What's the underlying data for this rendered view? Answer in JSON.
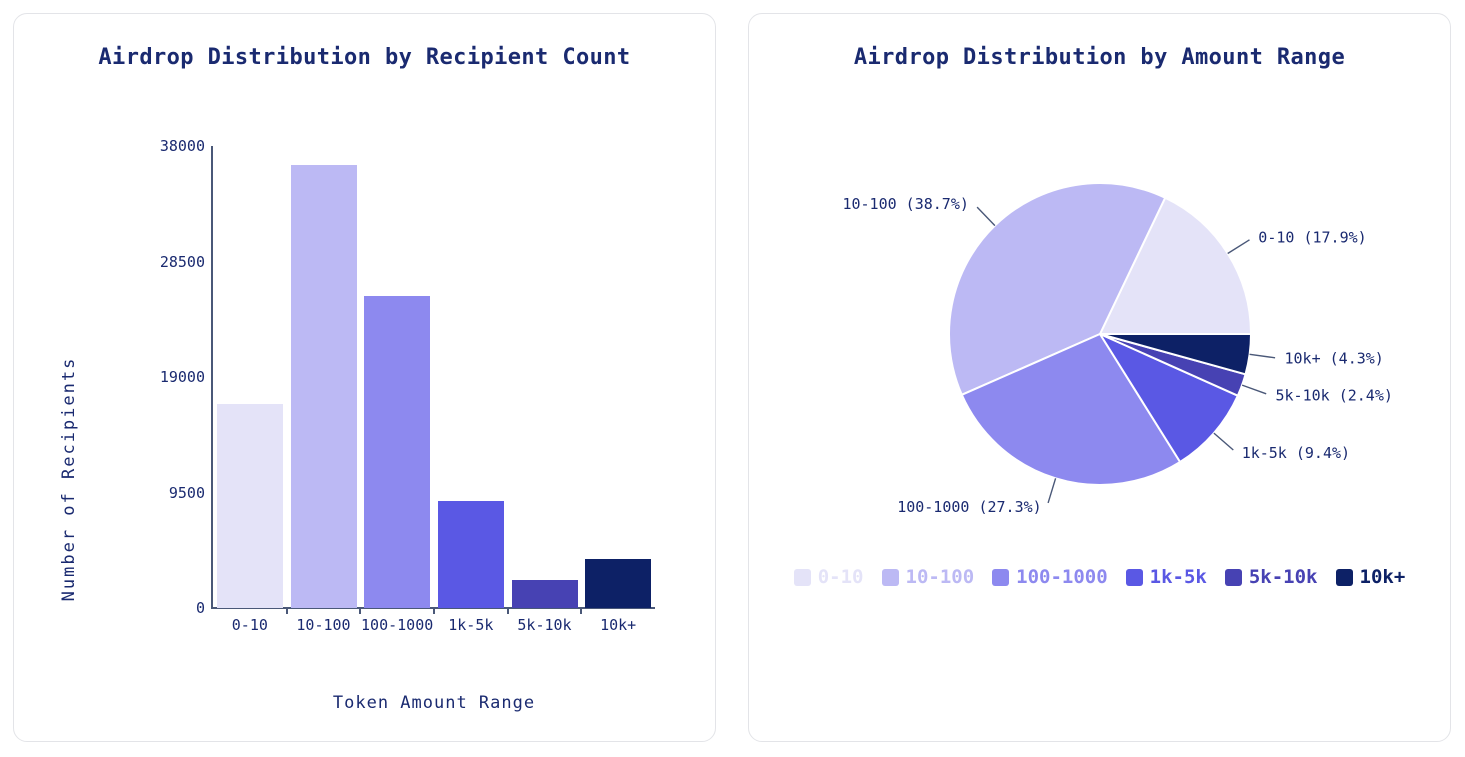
{
  "theme": {
    "background": "#ffffff",
    "text_color": "#1a2a70",
    "axis_color": "#4a5878",
    "card_border_color": "#e3e4e8"
  },
  "chart_data": [
    {
      "type": "bar",
      "title": "Airdrop Distribution by Recipient Count",
      "xlabel": "Token Amount Range",
      "ylabel": "Number of Recipients",
      "categories": [
        "0-10",
        "10-100",
        "100-1000",
        "1k-5k",
        "5k-10k",
        "10k+"
      ],
      "values": [
        16800,
        36400,
        25700,
        8800,
        2300,
        4000
      ],
      "yticks": [
        0,
        9500,
        19000,
        28500,
        38000
      ],
      "ylim": [
        0,
        38000
      ],
      "grid": false,
      "legend": "none",
      "colors": [
        "#e4e3f8",
        "#bcb9f4",
        "#8d89ef",
        "#5a58e4",
        "#4742b3",
        "#0d2166"
      ]
    },
    {
      "type": "pie",
      "title": "Airdrop Distribution by Amount Range",
      "labels": [
        "0-10",
        "10-100",
        "100-1000",
        "1k-5k",
        "5k-10k",
        "10k+"
      ],
      "percentages": [
        17.9,
        38.7,
        27.3,
        9.4,
        2.4,
        4.3
      ],
      "slice_labels": [
        "0-10 (17.9%)",
        "10-100 (38.7%)",
        "100-1000 (27.3%)",
        "1k-5k (9.4%)",
        "5k-10k (2.4%)",
        "10k+ (4.3%)"
      ],
      "colors": [
        "#e4e3f8",
        "#bcb9f4",
        "#8d89ef",
        "#5a58e4",
        "#4742b3",
        "#0d2166"
      ],
      "start_angle_deg": 0,
      "direction": "counterclockwise",
      "legend_position": "bottom"
    }
  ]
}
